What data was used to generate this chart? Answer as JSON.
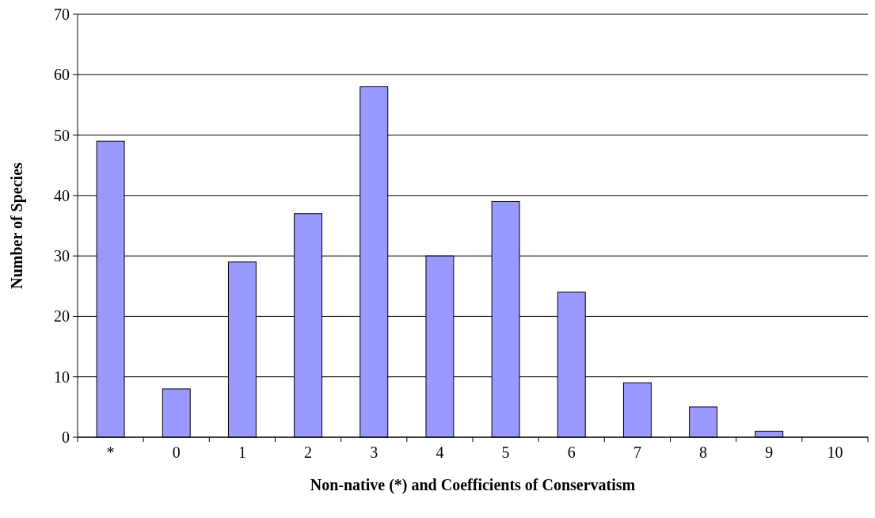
{
  "chart_data": {
    "type": "bar",
    "xlabel": "Non-native (*) and Coefficients of Conservatism",
    "ylabel": "Number of Species",
    "categories": [
      "*",
      "0",
      "1",
      "2",
      "3",
      "4",
      "5",
      "6",
      "7",
      "8",
      "9",
      "10"
    ],
    "values": [
      49,
      8,
      29,
      37,
      58,
      30,
      39,
      24,
      9,
      5,
      1,
      0
    ],
    "color": "#9999ff",
    "ylim": [
      0,
      70
    ],
    "yticks": [
      0,
      10,
      20,
      30,
      40,
      50,
      60,
      70
    ],
    "grid": "y"
  }
}
